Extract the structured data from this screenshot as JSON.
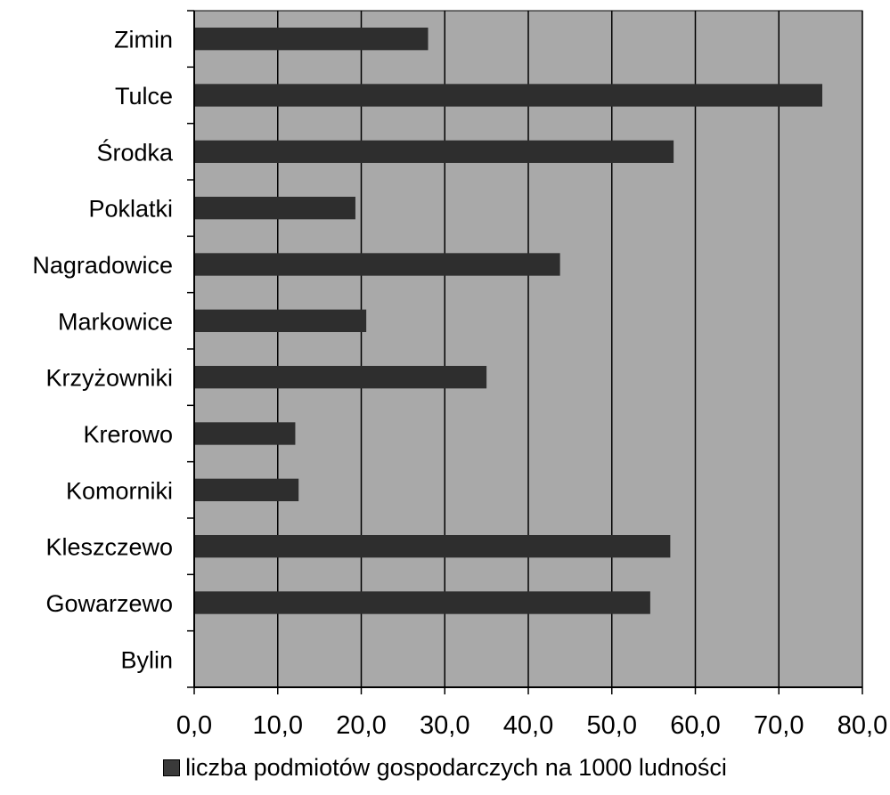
{
  "chart_data": {
    "type": "bar",
    "orientation": "horizontal",
    "title": "",
    "xlabel": "",
    "ylabel": "",
    "categories": [
      "Zimin",
      "Tulce",
      "Środka",
      "Poklatki",
      "Nagradowice",
      "Markowice",
      "Krzyżowniki",
      "Krerowo",
      "Komorniki",
      "Kleszczewo",
      "Gowarzewo",
      "Bylin"
    ],
    "series": [
      {
        "name": "liczba podmiotów gospodarczych na 1000 ludności",
        "values": [
          28.0,
          75.2,
          57.4,
          19.3,
          43.8,
          20.6,
          35.0,
          12.1,
          12.5,
          57.0,
          54.6,
          0.0
        ]
      }
    ],
    "xlim": [
      0,
      80
    ],
    "xticks": [
      0,
      10,
      20,
      30,
      40,
      50,
      60,
      70,
      80
    ],
    "xtick_labels": [
      "0,0",
      "10,0",
      "20,0",
      "30,0",
      "40,0",
      "50,0",
      "60,0",
      "70,0",
      "80,0"
    ],
    "grid": "vertical",
    "legend_position": "bottom",
    "colors": {
      "plot_background": "#a9a9a9",
      "bar": "#2e2e2e",
      "grid": "#000000"
    }
  }
}
